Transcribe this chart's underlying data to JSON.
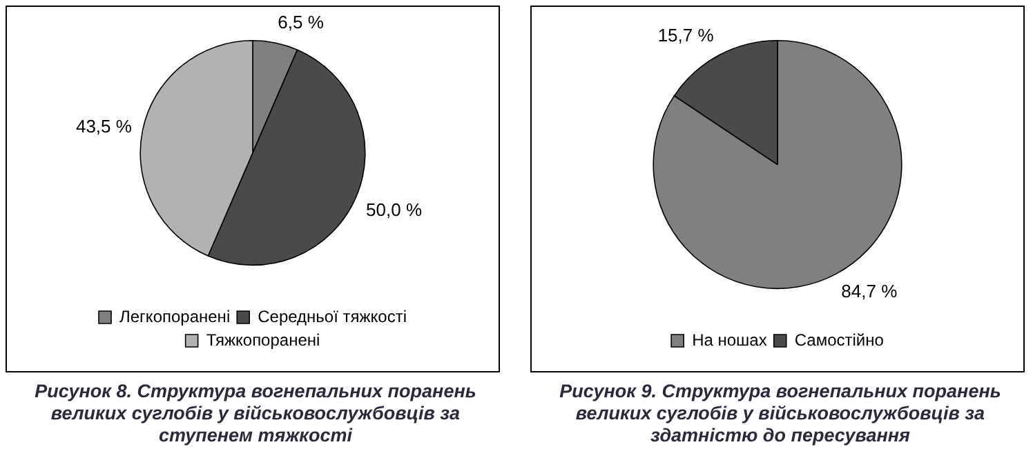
{
  "chart_data": [
    {
      "type": "pie",
      "title": "Рисунок 8. Структура вогнепальних поранень великих суглобів у військовослужбовців за ступенем тяжкості",
      "categories": [
        "Легкопоранені",
        "Середньої тяжкості",
        "Тяжкопоранені"
      ],
      "values": [
        6.5,
        50.0,
        43.5
      ],
      "value_labels": [
        "6,5 %",
        "50,0 %",
        "43,5 %"
      ],
      "colors": [
        "#808080",
        "#4a4a4a",
        "#b2b2b2"
      ],
      "legend": "bottom"
    },
    {
      "type": "pie",
      "title": "Рисунок 9. Структура вогнепальних поранень великих суглобів у військовослужбовців за здатністю до пересування",
      "categories": [
        "На ношах",
        "Самостійно"
      ],
      "values": [
        84.7,
        15.7
      ],
      "value_labels": [
        "84,7 %",
        "15,7 %"
      ],
      "colors": [
        "#808080",
        "#4a4a4a"
      ],
      "legend": "bottom"
    }
  ]
}
